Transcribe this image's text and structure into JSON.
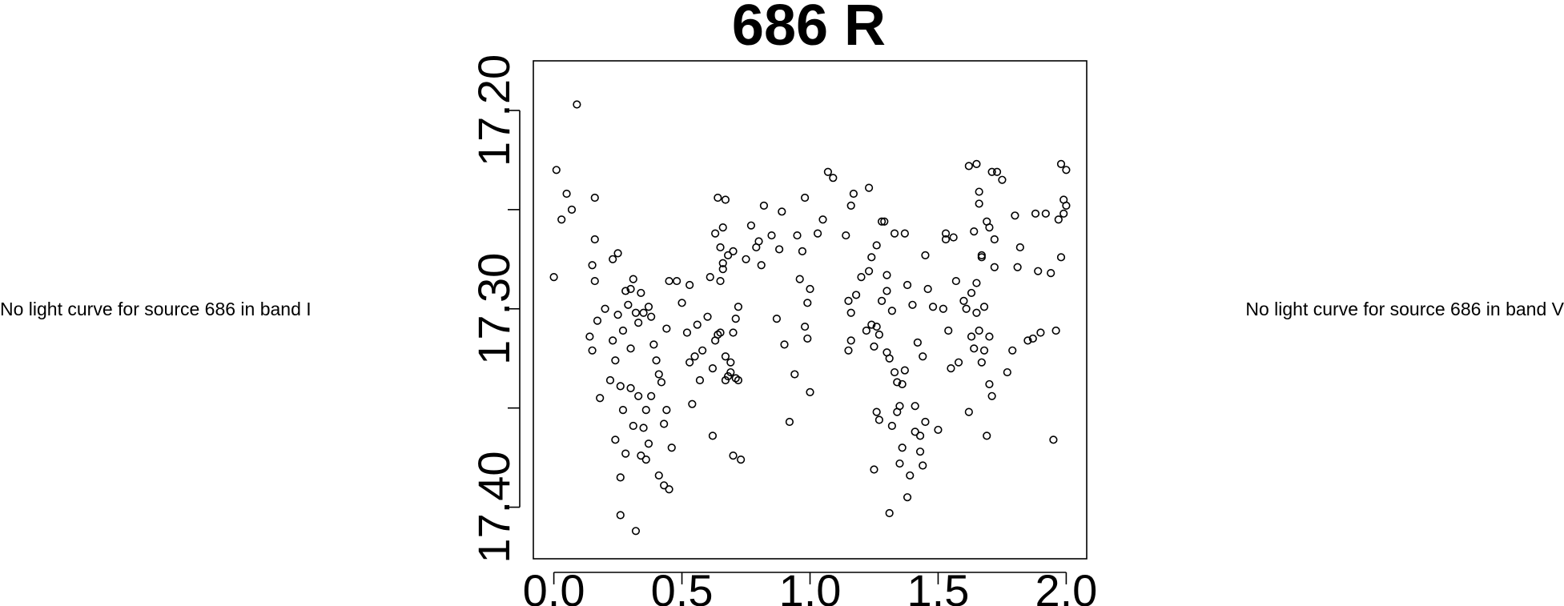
{
  "left_message": "No light curve for source 686 in band I",
  "right_message": "No light curve for source 686 in band V",
  "chart_data": {
    "type": "scatter",
    "title": "686 R",
    "xlabel": "",
    "ylabel": "",
    "xlim": [
      -0.08,
      2.08
    ],
    "ylim": [
      17.426,
      17.175
    ],
    "y_reversed": true,
    "xticks": [
      0.0,
      0.5,
      1.0,
      1.5,
      2.0
    ],
    "xtick_labels": [
      "0.0",
      "0.5",
      "1.0",
      "1.5",
      "2.0"
    ],
    "yticks": [
      17.2,
      17.25,
      17.3,
      17.35,
      17.4
    ],
    "ytick_labels": [
      "17.20",
      "",
      "17.30",
      "",
      "17.40"
    ],
    "grid": false,
    "marker": "open-circle",
    "color": "#000000",
    "x": [
      0.0,
      0.01,
      0.03,
      0.05,
      0.07,
      0.09,
      0.14,
      0.15,
      0.15,
      0.16,
      0.16,
      0.16,
      0.17,
      0.18,
      0.2,
      0.22,
      0.23,
      0.23,
      0.24,
      0.24,
      0.25,
      0.25,
      0.26,
      0.26,
      0.26,
      0.27,
      0.27,
      0.28,
      0.28,
      0.29,
      0.3,
      0.3,
      0.3,
      0.31,
      0.31,
      0.32,
      0.32,
      0.33,
      0.33,
      0.34,
      0.34,
      0.35,
      0.35,
      0.36,
      0.36,
      0.37,
      0.37,
      0.38,
      0.38,
      0.39,
      0.4,
      0.41,
      0.41,
      0.42,
      0.43,
      0.43,
      0.44,
      0.44,
      0.45,
      0.45,
      0.46,
      0.48,
      0.5,
      0.52,
      0.53,
      0.53,
      0.54,
      0.55,
      0.56,
      0.57,
      0.58,
      0.6,
      0.61,
      0.62,
      0.62,
      0.63,
      0.63,
      0.64,
      0.64,
      0.65,
      0.65,
      0.65,
      0.66,
      0.66,
      0.66,
      0.67,
      0.67,
      0.67,
      0.68,
      0.68,
      0.69,
      0.69,
      0.7,
      0.7,
      0.7,
      0.71,
      0.71,
      0.72,
      0.72,
      0.73,
      0.75,
      0.77,
      0.79,
      0.8,
      0.81,
      0.82,
      0.85,
      0.87,
      0.88,
      0.89,
      0.9,
      0.92,
      0.94,
      0.95,
      0.96,
      0.97,
      0.98,
      0.98,
      0.99,
      0.99,
      1.0,
      1.0,
      1.03,
      1.05,
      1.07,
      1.09,
      1.14,
      1.15,
      1.15,
      1.16,
      1.16,
      1.16,
      1.17,
      1.18,
      1.2,
      1.22,
      1.23,
      1.23,
      1.24,
      1.24,
      1.25,
      1.25,
      1.26,
      1.26,
      1.26,
      1.27,
      1.27,
      1.28,
      1.28,
      1.29,
      1.3,
      1.3,
      1.3,
      1.31,
      1.31,
      1.32,
      1.32,
      1.33,
      1.33,
      1.34,
      1.34,
      1.35,
      1.35,
      1.36,
      1.36,
      1.37,
      1.37,
      1.38,
      1.38,
      1.39,
      1.4,
      1.41,
      1.41,
      1.42,
      1.43,
      1.43,
      1.44,
      1.44,
      1.45,
      1.45,
      1.46,
      1.48,
      1.5,
      1.52,
      1.53,
      1.53,
      1.54,
      1.55,
      1.56,
      1.57,
      1.58,
      1.6,
      1.61,
      1.62,
      1.62,
      1.63,
      1.63,
      1.64,
      1.64,
      1.65,
      1.65,
      1.65,
      1.66,
      1.66,
      1.66,
      1.67,
      1.67,
      1.67,
      1.68,
      1.68,
      1.69,
      1.69,
      1.7,
      1.7,
      1.7,
      1.71,
      1.71,
      1.72,
      1.72,
      1.73,
      1.75,
      1.77,
      1.79,
      1.8,
      1.81,
      1.82,
      1.85,
      1.87,
      1.88,
      1.89,
      1.9,
      1.92,
      1.94,
      1.95,
      1.96,
      1.97,
      1.98,
      1.98,
      1.99,
      1.99,
      2.0,
      2.0
    ],
    "y": [
      17.284,
      17.23,
      17.255,
      17.242,
      17.25,
      17.197,
      17.314,
      17.278,
      17.321,
      17.265,
      17.286,
      17.244,
      17.306,
      17.345,
      17.3,
      17.336,
      17.316,
      17.275,
      17.326,
      17.366,
      17.303,
      17.272,
      17.339,
      17.404,
      17.385,
      17.351,
      17.311,
      17.373,
      17.291,
      17.298,
      17.29,
      17.32,
      17.34,
      17.285,
      17.359,
      17.302,
      17.412,
      17.307,
      17.344,
      17.292,
      17.374,
      17.36,
      17.302,
      17.351,
      17.376,
      17.368,
      17.299,
      17.344,
      17.304,
      17.318,
      17.326,
      17.333,
      17.384,
      17.337,
      17.358,
      17.389,
      17.351,
      17.31,
      17.391,
      17.286,
      17.37,
      17.286,
      17.297,
      17.312,
      17.327,
      17.288,
      17.348,
      17.324,
      17.308,
      17.336,
      17.321,
      17.304,
      17.284,
      17.33,
      17.364,
      17.262,
      17.316,
      17.313,
      17.244,
      17.312,
      17.269,
      17.286,
      17.277,
      17.259,
      17.28,
      17.336,
      17.324,
      17.245,
      17.334,
      17.273,
      17.327,
      17.332,
      17.374,
      17.312,
      17.271,
      17.305,
      17.335,
      17.336,
      17.299,
      17.376,
      17.275,
      17.258,
      17.269,
      17.266,
      17.278,
      17.248,
      17.263,
      17.305,
      17.27,
      17.251,
      17.318,
      17.357,
      17.333,
      17.263,
      17.285,
      17.271,
      17.244,
      17.309,
      17.297,
      17.315,
      17.342,
      17.29,
      17.262,
      17.255,
      17.231,
      17.234,
      17.263,
      17.321,
      17.296,
      17.248,
      17.302,
      17.316,
      17.242,
      17.293,
      17.284,
      17.311,
      17.239,
      17.281,
      17.308,
      17.274,
      17.319,
      17.381,
      17.309,
      17.268,
      17.352,
      17.356,
      17.313,
      17.256,
      17.296,
      17.256,
      17.283,
      17.322,
      17.291,
      17.325,
      17.403,
      17.359,
      17.301,
      17.332,
      17.262,
      17.337,
      17.352,
      17.349,
      17.378,
      17.37,
      17.338,
      17.262,
      17.331,
      17.395,
      17.288,
      17.384,
      17.298,
      17.362,
      17.349,
      17.317,
      17.364,
      17.372,
      17.324,
      17.379,
      17.273,
      17.357,
      17.29,
      17.299,
      17.361,
      17.3,
      17.265,
      17.262,
      17.311,
      17.33,
      17.264,
      17.286,
      17.327,
      17.296,
      17.3,
      17.228,
      17.352,
      17.292,
      17.314,
      17.261,
      17.32,
      17.227,
      17.287,
      17.302,
      17.311,
      17.247,
      17.241,
      17.274,
      17.327,
      17.273,
      17.321,
      17.299,
      17.364,
      17.256,
      17.259,
      17.314,
      17.338,
      17.344,
      17.231,
      17.279,
      17.265,
      17.231,
      17.235,
      17.332,
      17.321,
      17.253,
      17.279,
      17.269,
      17.316,
      17.315,
      17.252,
      17.281,
      17.312,
      17.252,
      17.282,
      17.366,
      17.311,
      17.255,
      17.274,
      17.227,
      17.245,
      17.252,
      17.23,
      17.248
    ],
    "values_note": ""
  }
}
